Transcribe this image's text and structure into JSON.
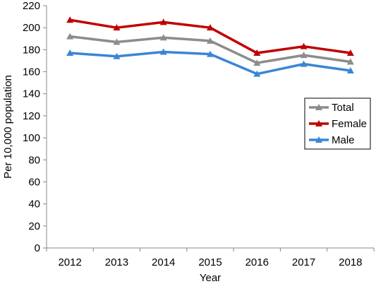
{
  "chart_data": {
    "type": "line",
    "title": "",
    "xlabel": "Year",
    "ylabel": "Per 10,000 population",
    "x": [
      "2012",
      "2013",
      "2014",
      "2015",
      "2016",
      "2017",
      "2018"
    ],
    "ylim": [
      0,
      220
    ],
    "yticks": [
      "0",
      "20",
      "40",
      "60",
      "80",
      "100",
      "120",
      "140",
      "160",
      "180",
      "200",
      "220"
    ],
    "grid": false,
    "legend": "right",
    "marker": "triangle",
    "series": [
      {
        "name": "Total",
        "color": "#8c8c8c",
        "values": [
          192,
          187,
          191,
          188,
          168,
          175,
          169
        ]
      },
      {
        "name": "Female",
        "color": "#c00000",
        "values": [
          207,
          200,
          205,
          200,
          177,
          183,
          177
        ]
      },
      {
        "name": "Male",
        "color": "#3a86d4",
        "values": [
          177,
          174,
          178,
          176,
          158,
          167,
          161
        ]
      }
    ]
  }
}
